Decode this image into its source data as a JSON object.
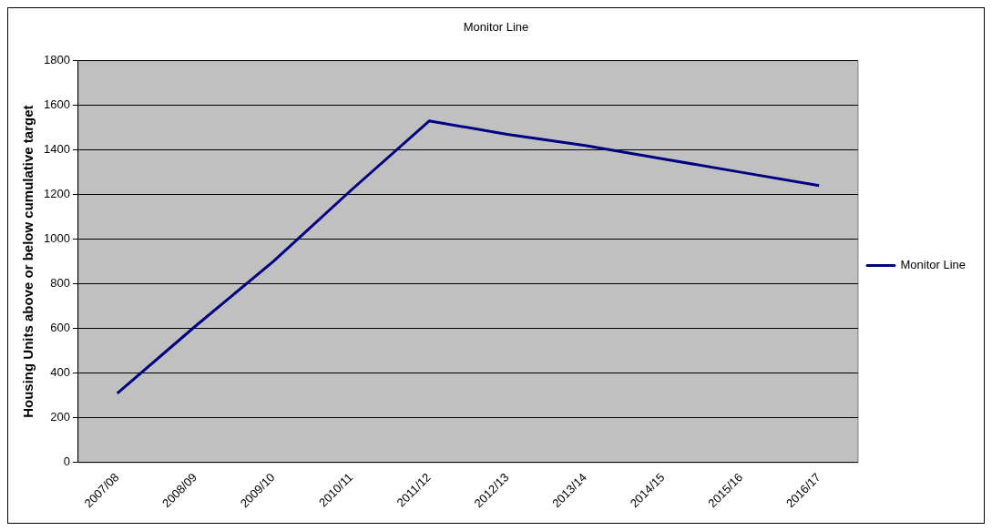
{
  "chart_data": {
    "type": "line",
    "title": "Monitor Line",
    "ylabel": "Housing Units above or below cumulative target",
    "categories": [
      "2007/08",
      "2008/09",
      "2009/10",
      "2010/11",
      "2011/12",
      "2012/13",
      "2013/14",
      "2014/15",
      "2015/16",
      "2016/17"
    ],
    "series": [
      {
        "name": "Monitor Line",
        "color": "#000080",
        "values": [
          310,
          610,
          900,
          1220,
          1530,
          1470,
          1420,
          1360,
          1300,
          1240
        ]
      }
    ],
    "ylim": [
      0,
      1800
    ],
    "yticks": [
      0,
      200,
      400,
      600,
      800,
      1000,
      1200,
      1400,
      1600,
      1800
    ],
    "grid": "y",
    "legend": "right",
    "marker": "none",
    "line_style": "solid"
  }
}
